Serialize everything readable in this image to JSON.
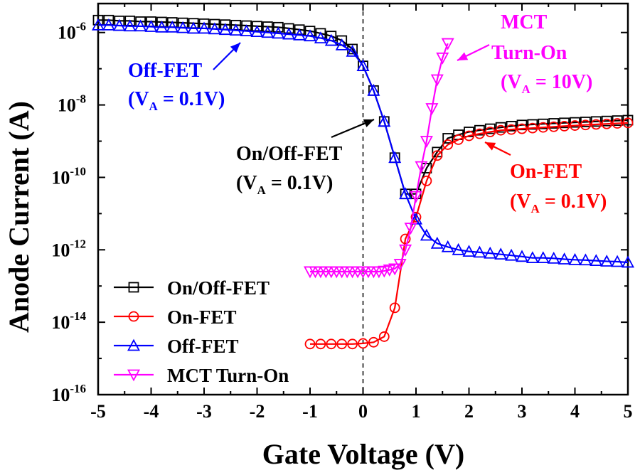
{
  "chart_data": {
    "type": "line",
    "xlabel": "Gate Voltage (V)",
    "ylabel": "Anode Current (A)",
    "xlim": [
      -5,
      5
    ],
    "ylim_log10": [
      -16,
      -5.2
    ],
    "y_scale": "log",
    "grid": false,
    "legend_placement": "bottom-left",
    "x_ticks": [
      -5,
      -4,
      -3,
      -2,
      -1,
      0,
      1,
      2,
      3,
      4,
      5
    ],
    "y_ticks": [
      {
        "base": "10",
        "exp": "-6",
        "value": 1e-06
      },
      {
        "base": "10",
        "exp": "-8",
        "value": 1e-08
      },
      {
        "base": "10",
        "exp": "-10",
        "value": 1e-10
      },
      {
        "base": "10",
        "exp": "-12",
        "value": 1e-12
      },
      {
        "base": "10",
        "exp": "-14",
        "value": 1e-14
      },
      {
        "base": "10",
        "exp": "-16",
        "value": 1e-16
      }
    ],
    "reference_line_x": 0,
    "series": [
      {
        "name": "On/Off-FET",
        "color": "#000000",
        "marker": "square",
        "x": [
          -5,
          -4.8,
          -4.6,
          -4.4,
          -4.2,
          -4,
          -3.8,
          -3.6,
          -3.4,
          -3.2,
          -3,
          -2.8,
          -2.6,
          -2.4,
          -2.2,
          -2,
          -1.8,
          -1.6,
          -1.4,
          -1.2,
          -1,
          -0.8,
          -0.6,
          -0.4,
          -0.2,
          0,
          0.2,
          0.4,
          0.6,
          0.8,
          1.0,
          1.2,
          1.4,
          1.6,
          1.8,
          2.0,
          2.2,
          2.4,
          2.6,
          2.8,
          3.0,
          3.2,
          3.4,
          3.6,
          3.8,
          4.0,
          4.2,
          4.4,
          4.6,
          4.8,
          5.0
        ],
        "y": [
          2.2e-06,
          2.2e-06,
          2.1e-06,
          2.1e-06,
          2e-06,
          2e-06,
          1.95e-06,
          1.9e-06,
          1.85e-06,
          1.8e-06,
          1.75e-06,
          1.7e-06,
          1.65e-06,
          1.6e-06,
          1.55e-06,
          1.5e-06,
          1.45e-06,
          1.4e-06,
          1.3e-06,
          1.2e-06,
          1.1e-06,
          9.5e-07,
          8e-07,
          6e-07,
          3.5e-07,
          1.2e-07,
          2.5e-08,
          3.5e-09,
          3.5e-10,
          3.5e-11,
          3.5e-11,
          1.8e-10,
          5e-10,
          1.2e-09,
          1.5e-09,
          1.8e-09,
          2e-09,
          2.2e-09,
          2.4e-09,
          2.6e-09,
          2.8e-09,
          2.9e-09,
          3e-09,
          3.1e-09,
          3.2e-09,
          3.3e-09,
          3.4e-09,
          3.5e-09,
          3.6e-09,
          3.7e-09,
          3.8e-09
        ]
      },
      {
        "name": "On-FET",
        "color": "#ff0000",
        "marker": "circle",
        "x": [
          -1.0,
          -0.8,
          -0.6,
          -0.4,
          -0.2,
          0,
          0.2,
          0.4,
          0.6,
          0.8,
          1.0,
          1.2,
          1.4,
          1.6,
          1.8,
          2.0,
          2.2,
          2.4,
          2.6,
          2.8,
          3.0,
          3.2,
          3.4,
          3.6,
          3.8,
          4.0,
          4.2,
          4.4,
          4.6,
          4.8,
          5.0
        ],
        "y": [
          2.5e-15,
          2.5e-15,
          2.5e-15,
          2.5e-15,
          2.5e-15,
          2.6e-15,
          2.8e-15,
          4e-15,
          2.5e-14,
          2e-12,
          8e-12,
          8e-11,
          4e-10,
          8e-10,
          1.1e-09,
          1.4e-09,
          1.6e-09,
          1.8e-09,
          2e-09,
          2.1e-09,
          2.2e-09,
          2.3e-09,
          2.4e-09,
          2.5e-09,
          2.6e-09,
          2.7e-09,
          2.8e-09,
          2.9e-09,
          3e-09,
          3.1e-09,
          3.2e-09
        ]
      },
      {
        "name": "Off-FET",
        "color": "#0000ff",
        "marker": "triangle-up",
        "x": [
          -5,
          -4.8,
          -4.6,
          -4.4,
          -4.2,
          -4,
          -3.8,
          -3.6,
          -3.4,
          -3.2,
          -3,
          -2.8,
          -2.6,
          -2.4,
          -2.2,
          -2,
          -1.8,
          -1.6,
          -1.4,
          -1.2,
          -1,
          -0.8,
          -0.6,
          -0.4,
          -0.2,
          0,
          0.2,
          0.4,
          0.6,
          0.8,
          1.0,
          1.2,
          1.4,
          1.6,
          1.8,
          2.0,
          2.2,
          2.4,
          2.6,
          2.8,
          3.0,
          3.2,
          3.4,
          3.6,
          3.8,
          4.0,
          4.2,
          4.4,
          4.6,
          4.8,
          5.0
        ],
        "y": [
          1.6e-06,
          1.6e-06,
          1.55e-06,
          1.5e-06,
          1.5e-06,
          1.45e-06,
          1.4e-06,
          1.4e-06,
          1.35e-06,
          1.3e-06,
          1.3e-06,
          1.25e-06,
          1.2e-06,
          1.15e-06,
          1.1e-06,
          1.05e-06,
          1e-06,
          9.5e-07,
          9e-07,
          8.5e-07,
          8e-07,
          7e-07,
          6e-07,
          4.5e-07,
          3e-07,
          1.2e-07,
          2.5e-08,
          3.5e-09,
          3.5e-10,
          3.5e-11,
          7e-12,
          2.5e-12,
          1.5e-12,
          1.2e-12,
          1e-12,
          9e-13,
          8.5e-13,
          8e-13,
          7.5e-13,
          7e-13,
          6.5e-13,
          6e-13,
          6e-13,
          5.8e-13,
          5.5e-13,
          5.3e-13,
          5.2e-13,
          5e-13,
          4.8e-13,
          4.7e-13,
          4.5e-13
        ]
      },
      {
        "name": "MCT Turn-On",
        "color": "#ff00ff",
        "marker": "triangle-down",
        "x": [
          -1.0,
          -0.9,
          -0.8,
          -0.7,
          -0.6,
          -0.5,
          -0.4,
          -0.3,
          -0.2,
          -0.1,
          0,
          0.1,
          0.2,
          0.3,
          0.4,
          0.5,
          0.6,
          0.7,
          0.8,
          0.9,
          1.0,
          1.1,
          1.2,
          1.3,
          1.4,
          1.5,
          1.6
        ],
        "y": [
          2.5e-13,
          2.5e-13,
          2.5e-13,
          2.5e-13,
          2.5e-13,
          2.5e-13,
          2.5e-13,
          2.5e-13,
          2.5e-13,
          2.5e-13,
          2.5e-13,
          2.5e-13,
          2.5e-13,
          2.5e-13,
          2.6e-13,
          2.8e-13,
          3e-13,
          4e-13,
          1e-12,
          4e-12,
          3e-11,
          2e-10,
          1e-09,
          8e-09,
          5e-08,
          2e-07,
          5e-07
        ]
      }
    ],
    "annotations": [
      {
        "id": "off-fet",
        "line1": "Off-FET",
        "line2_pre": "(V",
        "line2_sub": "A",
        "line2_post": " = 0.1V)",
        "color": "#0000ff"
      },
      {
        "id": "on-off-fet",
        "line1": "On/Off-FET",
        "line2_pre": "(V",
        "line2_sub": "A",
        "line2_post": " = 0.1V)",
        "color": "#000000"
      },
      {
        "id": "on-fet",
        "line1": "On-FET",
        "line2_pre": "(V",
        "line2_sub": "A",
        "line2_post": " = 0.1V)",
        "color": "#ff0000"
      },
      {
        "id": "mct",
        "line1": "MCT",
        "line1b": "Turn-On",
        "line2_pre": "(V",
        "line2_sub": "A",
        "line2_post": " = 10V)",
        "color": "#ff00ff"
      }
    ]
  }
}
